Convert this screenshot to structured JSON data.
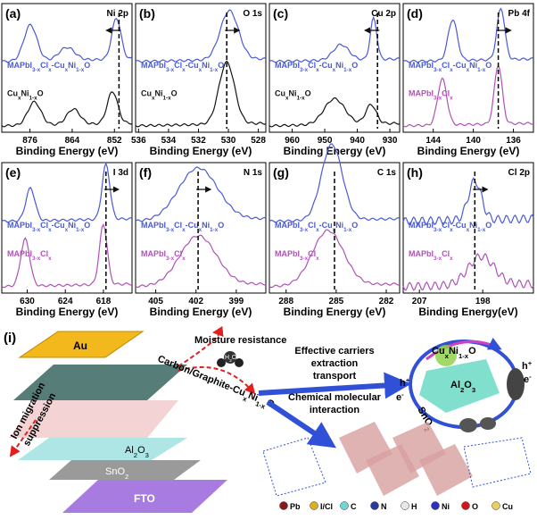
{
  "figure": {
    "panels": [
      {
        "label": "(a)",
        "element": "Ni 2p",
        "xlim": [
          884,
          847
        ],
        "xticks": [
          876,
          864,
          852
        ],
        "xlabel": "Binding Energy (eV)",
        "series": [
          {
            "name": "MAPbI3-xClx-CuxNi1-xO",
            "color": "#4a5ad6"
          },
          {
            "name": "CuxNi1-xO",
            "color": "#151515"
          }
        ]
      },
      {
        "label": "(b)",
        "element": "O 1s",
        "xlim": [
          536.2,
          527.5
        ],
        "xticks": [
          536,
          534,
          532,
          530,
          528
        ],
        "xlabel": "Binding Energy (eV)",
        "series": [
          {
            "name": "MAPbI3-xClx-CuxNi1-xO",
            "color": "#4a5ad6"
          },
          {
            "name": "CuxNi1-xO",
            "color": "#151515"
          }
        ]
      },
      {
        "label": "(c)",
        "element": "Cu 2p",
        "xlim": [
          967,
          927
        ],
        "xticks": [
          960,
          950,
          940,
          930
        ],
        "xlabel": "Binding Energy (eV)",
        "series": [
          {
            "name": "MAPbI3-xClx-CuxNi1-xO",
            "color": "#4a5ad6"
          },
          {
            "name": "CuxNi1-xO",
            "color": "#151515"
          }
        ]
      },
      {
        "label": "(d)",
        "element": "Pb 4f",
        "xlim": [
          147,
          134
        ],
        "xticks": [
          144,
          140,
          136
        ],
        "xlabel": "Binding Energy (eV)",
        "series": [
          {
            "name": "MAPbI3-xClx-CuxNi1-xO",
            "color": "#4a5ad6"
          },
          {
            "name": "MAPbI3-xClx",
            "color": "#b052b8"
          }
        ]
      },
      {
        "label": "(e)",
        "element": "I 3d",
        "xlim": [
          634,
          613.5
        ],
        "xticks": [
          630,
          624,
          618
        ],
        "xlabel": "Binding Energy (eV)",
        "series": [
          {
            "name": "MAPbI3-xClx-CuxNi1-xO",
            "color": "#4a5ad6"
          },
          {
            "name": "MAPbI3-xClx",
            "color": "#b052b8"
          }
        ]
      },
      {
        "label": "(f)",
        "element": "N 1s",
        "xlim": [
          406.5,
          396.8
        ],
        "xticks": [
          405,
          402,
          399
        ],
        "xlabel": "Binding Energy (eV)",
        "series": [
          {
            "name": "MAPbI3-xClx-CuxNi1-xO",
            "color": "#4a5ad6"
          },
          {
            "name": "MAPbI3-xClx",
            "color": "#b052b8"
          }
        ]
      },
      {
        "label": "(g)",
        "element": "C 1s",
        "xlim": [
          289,
          281.2
        ],
        "xticks": [
          288,
          285,
          282
        ],
        "xlabel": "Binding Energy (eV)",
        "series": [
          {
            "name": "MAPbI3-xClx-CuxNi1-xO",
            "color": "#4a5ad6"
          },
          {
            "name": "MAPbI3-xClx",
            "color": "#b052b8"
          }
        ]
      },
      {
        "label": "(h)",
        "element": "Cl 2p",
        "xlim": [
          209.3,
          190.8
        ],
        "xticks": [
          207,
          198
        ],
        "xlabel": "Binding Energy(eV)",
        "series": [
          {
            "name": "MAPbI3-xClx-CuxNi1-xO",
            "color": "#4a5ad6"
          },
          {
            "name": "MAPbI3-xClx",
            "color": "#b052b8"
          }
        ]
      }
    ],
    "schematic": {
      "label": "(i)",
      "au": "Au",
      "fto": "FTO",
      "sno2": "SnO2",
      "al2o3": "Al2O3",
      "moisture": "Moisture resistance",
      "h2o": "H2O",
      "carbon": "Carbon/Graphite-CuxNi1-xO",
      "ion": [
        "Ion migration",
        "suppression"
      ],
      "effective": [
        "Effective carriers",
        "extraction",
        "transport"
      ],
      "chemical": [
        "Chemical molecular",
        "interaction"
      ],
      "cycle": {
        "htl": "CuxNi1-xO",
        "core": "Al2O3",
        "etl": "SnO2",
        "h1": "h+",
        "e1": "e-",
        "h2": "h+",
        "e2": "e-"
      },
      "legend": [
        {
          "name": "Pb",
          "color": "#8a1a1a"
        },
        {
          "name": "I/Cl",
          "color": "#d8b020"
        },
        {
          "name": "C",
          "color": "#6fd6d6"
        },
        {
          "name": "N",
          "color": "#2a3a9a"
        },
        {
          "name": "H",
          "color": "#e8e8e8"
        },
        {
          "name": "Ni",
          "color": "#3030c0"
        },
        {
          "name": "O",
          "color": "#d01818"
        },
        {
          "name": "Cu",
          "color": "#e8d060"
        }
      ]
    }
  }
}
